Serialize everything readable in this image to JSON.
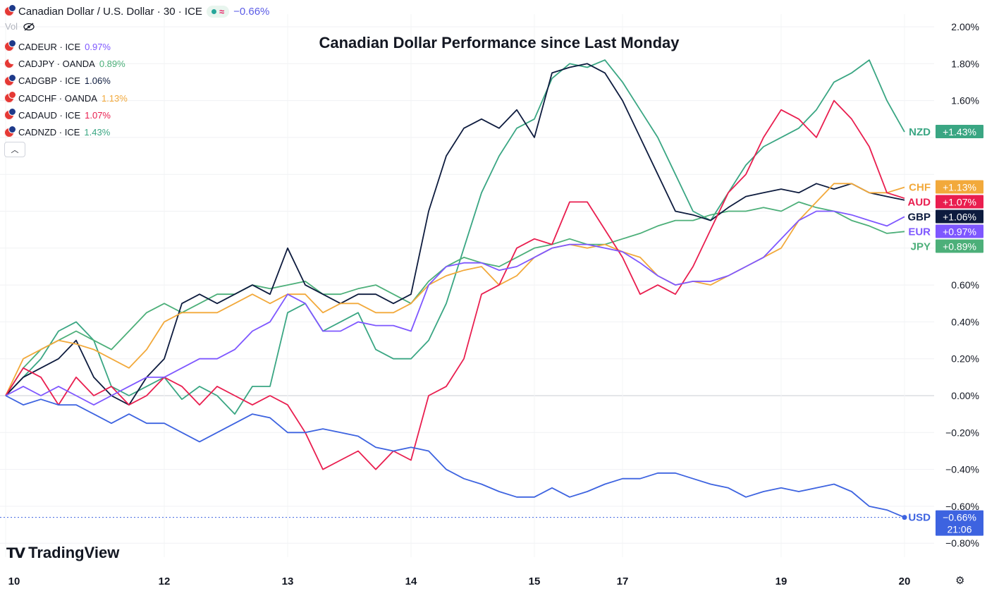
{
  "header": {
    "symbol_title": "Canadian Dollar / U.S. Dollar · 30 · ICE",
    "change": "−0.66%",
    "change_color": "#5b5ce6",
    "vol_label": "Vol"
  },
  "legend": [
    {
      "symbol": "CADEUR · ICE",
      "value": "0.97%",
      "color": "#7e57ff"
    },
    {
      "symbol": "CADJPY · OANDA",
      "value": "0.89%",
      "color": "#4caf79"
    },
    {
      "symbol": "CADGBP · ICE",
      "value": "1.06%",
      "color": "#0d1b3e"
    },
    {
      "symbol": "CADCHF · OANDA",
      "value": "1.13%",
      "color": "#f2a93b"
    },
    {
      "symbol": "CADAUD · ICE",
      "value": "1.07%",
      "color": "#e91e4f"
    },
    {
      "symbol": "CADNZD · ICE",
      "value": "1.43%",
      "color": "#3aa683"
    }
  ],
  "branding": {
    "logo_text": "TradingView"
  },
  "icons": {
    "settings": "gear-icon",
    "visibility": "eye-off-icon",
    "collapse": "chevron-up-icon"
  },
  "chart_data": {
    "type": "line",
    "title": "Canadian Dollar Performance since Last Monday",
    "y_unit": "%",
    "ylim": [
      -0.85,
      2.05
    ],
    "y_ticks": [
      2.0,
      1.8,
      1.6,
      1.4,
      1.2,
      1.0,
      0.8,
      0.6,
      0.4,
      0.2,
      0.0,
      -0.2,
      -0.4,
      -0.6,
      -0.8
    ],
    "y_tick_labels": [
      "2.00%",
      "1.80%",
      "1.60%",
      "",
      "",
      "",
      "0.80%",
      "0.60%",
      "0.40%",
      "0.20%",
      "0.00%",
      "−0.20%",
      "−0.40%",
      "−0.60%",
      "−0.80%"
    ],
    "x_ticks": [
      "10",
      "12",
      "13",
      "14",
      "15",
      "17",
      "19",
      "20"
    ],
    "x_tick_index": [
      0,
      9,
      16,
      23,
      30,
      35,
      44,
      51
    ],
    "grid": true,
    "series": [
      {
        "name": "NZD",
        "color": "#3aa683",
        "last_label": "+1.43%",
        "values": [
          0.0,
          0.1,
          0.2,
          0.35,
          0.4,
          0.3,
          0.05,
          0.0,
          0.05,
          0.1,
          -0.02,
          0.05,
          0.0,
          -0.1,
          0.05,
          0.05,
          0.45,
          0.5,
          0.35,
          0.4,
          0.45,
          0.25,
          0.2,
          0.2,
          0.3,
          0.5,
          0.8,
          1.1,
          1.3,
          1.45,
          1.5,
          1.72,
          1.8,
          1.78,
          1.82,
          1.7,
          1.55,
          1.4,
          1.2,
          1.0,
          0.95,
          1.1,
          1.25,
          1.35,
          1.4,
          1.45,
          1.55,
          1.7,
          1.75,
          1.82,
          1.6,
          1.43
        ]
      },
      {
        "name": "JPY",
        "color": "#4caf79",
        "last_label": "+0.89%",
        "values": [
          0.0,
          0.15,
          0.25,
          0.3,
          0.35,
          0.3,
          0.25,
          0.35,
          0.45,
          0.5,
          0.45,
          0.5,
          0.55,
          0.55,
          0.6,
          0.58,
          0.6,
          0.62,
          0.55,
          0.55,
          0.58,
          0.6,
          0.55,
          0.5,
          0.62,
          0.7,
          0.75,
          0.72,
          0.7,
          0.75,
          0.8,
          0.82,
          0.85,
          0.82,
          0.82,
          0.85,
          0.88,
          0.92,
          0.95,
          0.95,
          0.98,
          1.0,
          1.0,
          1.02,
          1.0,
          1.05,
          1.02,
          1.0,
          0.95,
          0.92,
          0.88,
          0.89
        ]
      },
      {
        "name": "GBP",
        "color": "#0d1b3e",
        "last_label": "+1.06%",
        "values": [
          0.0,
          0.1,
          0.15,
          0.2,
          0.3,
          0.1,
          0.0,
          -0.05,
          0.1,
          0.2,
          0.5,
          0.55,
          0.5,
          0.55,
          0.6,
          0.55,
          0.8,
          0.6,
          0.55,
          0.5,
          0.55,
          0.55,
          0.5,
          0.55,
          1.0,
          1.3,
          1.45,
          1.5,
          1.45,
          1.55,
          1.4,
          1.75,
          1.78,
          1.8,
          1.75,
          1.6,
          1.4,
          1.2,
          1.0,
          0.98,
          0.95,
          1.02,
          1.08,
          1.1,
          1.12,
          1.1,
          1.15,
          1.12,
          1.15,
          1.1,
          1.08,
          1.06
        ]
      },
      {
        "name": "CHF",
        "color": "#f2a93b",
        "last_label": "+1.13%",
        "values": [
          0.0,
          0.2,
          0.25,
          0.3,
          0.28,
          0.25,
          0.2,
          0.15,
          0.25,
          0.4,
          0.45,
          0.45,
          0.45,
          0.5,
          0.55,
          0.5,
          0.55,
          0.55,
          0.45,
          0.5,
          0.5,
          0.45,
          0.45,
          0.5,
          0.6,
          0.65,
          0.68,
          0.7,
          0.6,
          0.65,
          0.75,
          0.8,
          0.82,
          0.8,
          0.82,
          0.78,
          0.75,
          0.65,
          0.6,
          0.62,
          0.6,
          0.65,
          0.7,
          0.75,
          0.8,
          0.95,
          1.05,
          1.15,
          1.15,
          1.1,
          1.1,
          1.13
        ]
      },
      {
        "name": "AUD",
        "color": "#e91e4f",
        "last_label": "+1.07%",
        "values": [
          0.0,
          0.15,
          0.1,
          -0.05,
          0.1,
          0.0,
          0.05,
          -0.05,
          0.0,
          0.1,
          0.05,
          -0.05,
          0.05,
          0.0,
          -0.05,
          0.0,
          -0.05,
          -0.2,
          -0.4,
          -0.35,
          -0.3,
          -0.4,
          -0.3,
          -0.35,
          0.0,
          0.05,
          0.2,
          0.55,
          0.6,
          0.8,
          0.85,
          0.82,
          1.05,
          1.05,
          0.9,
          0.75,
          0.55,
          0.6,
          0.55,
          0.7,
          0.9,
          1.1,
          1.2,
          1.4,
          1.55,
          1.5,
          1.4,
          1.6,
          1.5,
          1.35,
          1.1,
          1.07
        ]
      },
      {
        "name": "EUR",
        "color": "#7e57ff",
        "last_label": "+0.97%",
        "values": [
          0.0,
          0.05,
          0.0,
          0.05,
          0.0,
          -0.05,
          0.0,
          0.05,
          0.1,
          0.1,
          0.15,
          0.2,
          0.2,
          0.25,
          0.35,
          0.4,
          0.55,
          0.5,
          0.35,
          0.35,
          0.4,
          0.38,
          0.38,
          0.35,
          0.6,
          0.7,
          0.72,
          0.72,
          0.68,
          0.7,
          0.75,
          0.8,
          0.82,
          0.82,
          0.8,
          0.78,
          0.72,
          0.65,
          0.6,
          0.62,
          0.62,
          0.65,
          0.7,
          0.75,
          0.85,
          0.95,
          1.0,
          1.0,
          0.98,
          0.95,
          0.92,
          0.97
        ]
      },
      {
        "name": "USD",
        "color": "#3d63e0",
        "last_label": "−0.66%",
        "values": [
          0.0,
          -0.05,
          -0.02,
          -0.05,
          -0.05,
          -0.1,
          -0.15,
          -0.1,
          -0.15,
          -0.15,
          -0.2,
          -0.25,
          -0.2,
          -0.15,
          -0.1,
          -0.12,
          -0.2,
          -0.2,
          -0.18,
          -0.2,
          -0.22,
          -0.28,
          -0.3,
          -0.28,
          -0.3,
          -0.4,
          -0.45,
          -0.48,
          -0.52,
          -0.55,
          -0.55,
          -0.5,
          -0.55,
          -0.52,
          -0.48,
          -0.45,
          -0.45,
          -0.42,
          -0.42,
          -0.45,
          -0.48,
          -0.5,
          -0.55,
          -0.52,
          -0.5,
          -0.52,
          -0.5,
          -0.48,
          -0.52,
          -0.6,
          -0.62,
          -0.66
        ]
      }
    ],
    "usd_time_label": "21:06"
  }
}
